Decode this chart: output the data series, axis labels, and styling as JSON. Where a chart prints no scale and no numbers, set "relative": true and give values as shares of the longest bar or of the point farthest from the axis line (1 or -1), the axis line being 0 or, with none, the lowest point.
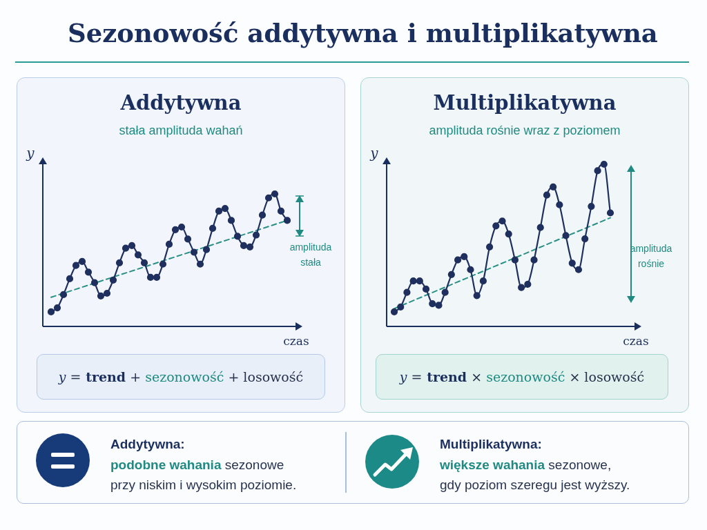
{
  "chart_data": [
    {
      "type": "other",
      "title": "Sezonowość addytywna i multiplikatywna"
    },
    {
      "type": "line",
      "title": "Addytywna",
      "subtitle": "stała amplituda wahań",
      "xlabel": "czas",
      "ylabel": "y",
      "relative": true,
      "categories": [
        null,
        null,
        null,
        null,
        null,
        null,
        null,
        null,
        null,
        null,
        null,
        null,
        null,
        null,
        null,
        null,
        null,
        null,
        null,
        null,
        null,
        null,
        null,
        null,
        null,
        null,
        null,
        null,
        null,
        null,
        null,
        null,
        null,
        null,
        null,
        null,
        null,
        null,
        null
      ],
      "series": [
        {
          "type": "line",
          "color": "#1f2f5e",
          "marker": "circle",
          "line_style": "solid",
          "values": [
            0.11,
            0.14,
            0.24,
            0.36,
            0.46,
            0.49,
            0.41,
            0.33,
            0.23,
            0.25,
            0.35,
            0.48,
            0.59,
            0.61,
            0.54,
            0.48,
            0.37,
            0.37,
            0.47,
            0.62,
            0.73,
            0.75,
            0.66,
            0.56,
            0.47,
            0.58,
            0.74,
            0.87,
            0.89,
            0.8,
            0.68,
            0.61,
            0.6,
            0.69,
            0.84,
            0.97,
            1.0,
            0.87,
            0.8
          ]
        },
        {
          "type": "line",
          "color": "#2a9086",
          "marker": "none",
          "line_style": "dashed",
          "values": [
            0.22,
            null,
            null,
            null,
            null,
            null,
            null,
            null,
            null,
            null,
            null,
            null,
            null,
            null,
            null,
            null,
            null,
            null,
            null,
            null,
            null,
            null,
            null,
            null,
            null,
            null,
            null,
            null,
            null,
            null,
            null,
            null,
            null,
            null,
            null,
            null,
            null,
            null,
            0.8
          ]
        }
      ],
      "annotations": [
        "amplituda stała",
        "y = trend + sezonowość + losowość"
      ]
    },
    {
      "type": "line",
      "title": "Multiplikatywna",
      "subtitle": "amplituda rośnie wraz z poziomem",
      "xlabel": "czas",
      "ylabel": "y",
      "relative": true,
      "categories": [
        null,
        null,
        null,
        null,
        null,
        null,
        null,
        null,
        null,
        null,
        null,
        null,
        null,
        null,
        null,
        null,
        null,
        null,
        null,
        null,
        null,
        null,
        null,
        null,
        null,
        null,
        null,
        null,
        null,
        null,
        null,
        null,
        null,
        null,
        null
      ],
      "series": [
        {
          "type": "line",
          "color": "#1f2f5e",
          "marker": "circle",
          "line_style": "solid",
          "values": [
            0.09,
            0.12,
            0.21,
            0.28,
            0.28,
            0.23,
            0.14,
            0.13,
            0.21,
            0.32,
            0.41,
            0.43,
            0.35,
            0.19,
            0.28,
            0.49,
            0.62,
            0.65,
            0.57,
            0.41,
            0.24,
            0.26,
            0.41,
            0.61,
            0.81,
            0.86,
            0.75,
            0.56,
            0.39,
            0.35,
            0.54,
            0.74,
            0.96,
            1.0,
            0.7
          ]
        },
        {
          "type": "line",
          "color": "#2a9086",
          "marker": "none",
          "line_style": "dashed",
          "values": [
            0.11,
            null,
            null,
            null,
            null,
            null,
            null,
            null,
            null,
            null,
            null,
            null,
            null,
            null,
            null,
            null,
            null,
            null,
            null,
            null,
            null,
            null,
            null,
            null,
            null,
            null,
            null,
            null,
            null,
            null,
            null,
            null,
            null,
            null,
            0.67
          ]
        }
      ],
      "annotations": [
        "amplituda rośnie",
        "y = trend × sezonowość × losowość"
      ]
    },
    {
      "type": "other",
      "title": "Addytywna:",
      "annotations": [
        "podobne wahania",
        "sezonowe",
        "przy niskim i wysokim poziomie."
      ]
    },
    {
      "type": "other",
      "title": "Multiplikatywna:",
      "annotations": [
        "większe wahania",
        "sezonowe,",
        "gdy poziom szeregu jest wyższy."
      ]
    }
  ]
}
